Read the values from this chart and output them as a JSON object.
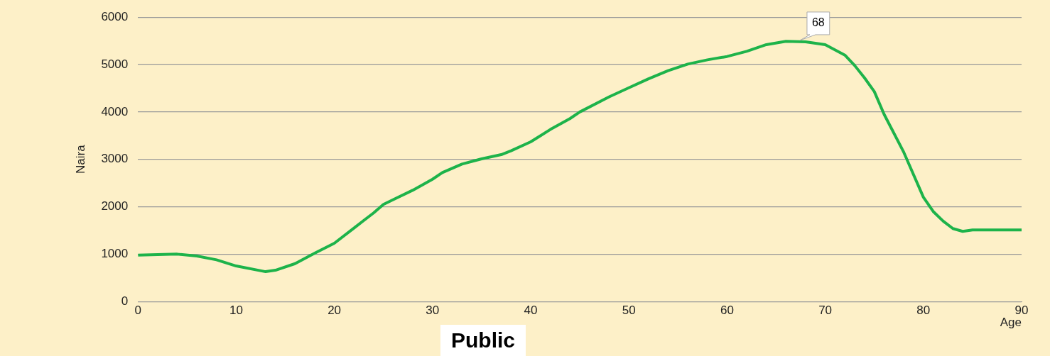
{
  "chart_data": {
    "type": "line",
    "title": "Public",
    "xlabel": "Age",
    "ylabel": "Naira",
    "x": [
      0,
      2,
      4,
      6,
      8,
      10,
      13,
      14,
      16,
      18,
      20,
      22,
      24,
      25,
      26,
      28,
      30,
      31,
      33,
      35,
      37,
      38,
      40,
      42,
      44,
      45,
      48,
      50,
      52,
      54,
      56,
      58,
      60,
      62,
      64,
      66,
      68,
      70,
      72,
      73,
      74,
      75,
      76,
      78,
      80,
      81,
      82,
      83,
      84,
      85,
      90
    ],
    "series": [
      {
        "color": "#1db34a",
        "values": [
          980,
          990,
          1000,
          960,
          880,
          750,
          630,
          660,
          800,
          1020,
          1230,
          1550,
          1870,
          2050,
          2150,
          2350,
          2580,
          2720,
          2900,
          3010,
          3100,
          3180,
          3370,
          3630,
          3860,
          4000,
          4320,
          4510,
          4700,
          4870,
          5010,
          5100,
          5170,
          5280,
          5420,
          5490,
          5480,
          5420,
          5200,
          4980,
          4720,
          4430,
          3950,
          3150,
          2200,
          1900,
          1700,
          1540,
          1480,
          1510,
          1510
        ]
      }
    ],
    "xlim": [
      0,
      90
    ],
    "xticks": [
      0,
      10,
      20,
      30,
      40,
      50,
      60,
      70,
      80,
      90
    ],
    "ylim": [
      0,
      6000
    ],
    "yticks": [
      0,
      1000,
      2000,
      3000,
      4000,
      5000,
      6000
    ],
    "grid": "y",
    "legend": false,
    "marker": "none",
    "line_style": "solid",
    "annotations": [
      {
        "text": "68",
        "x": 68,
        "y": 5480
      }
    ]
  }
}
